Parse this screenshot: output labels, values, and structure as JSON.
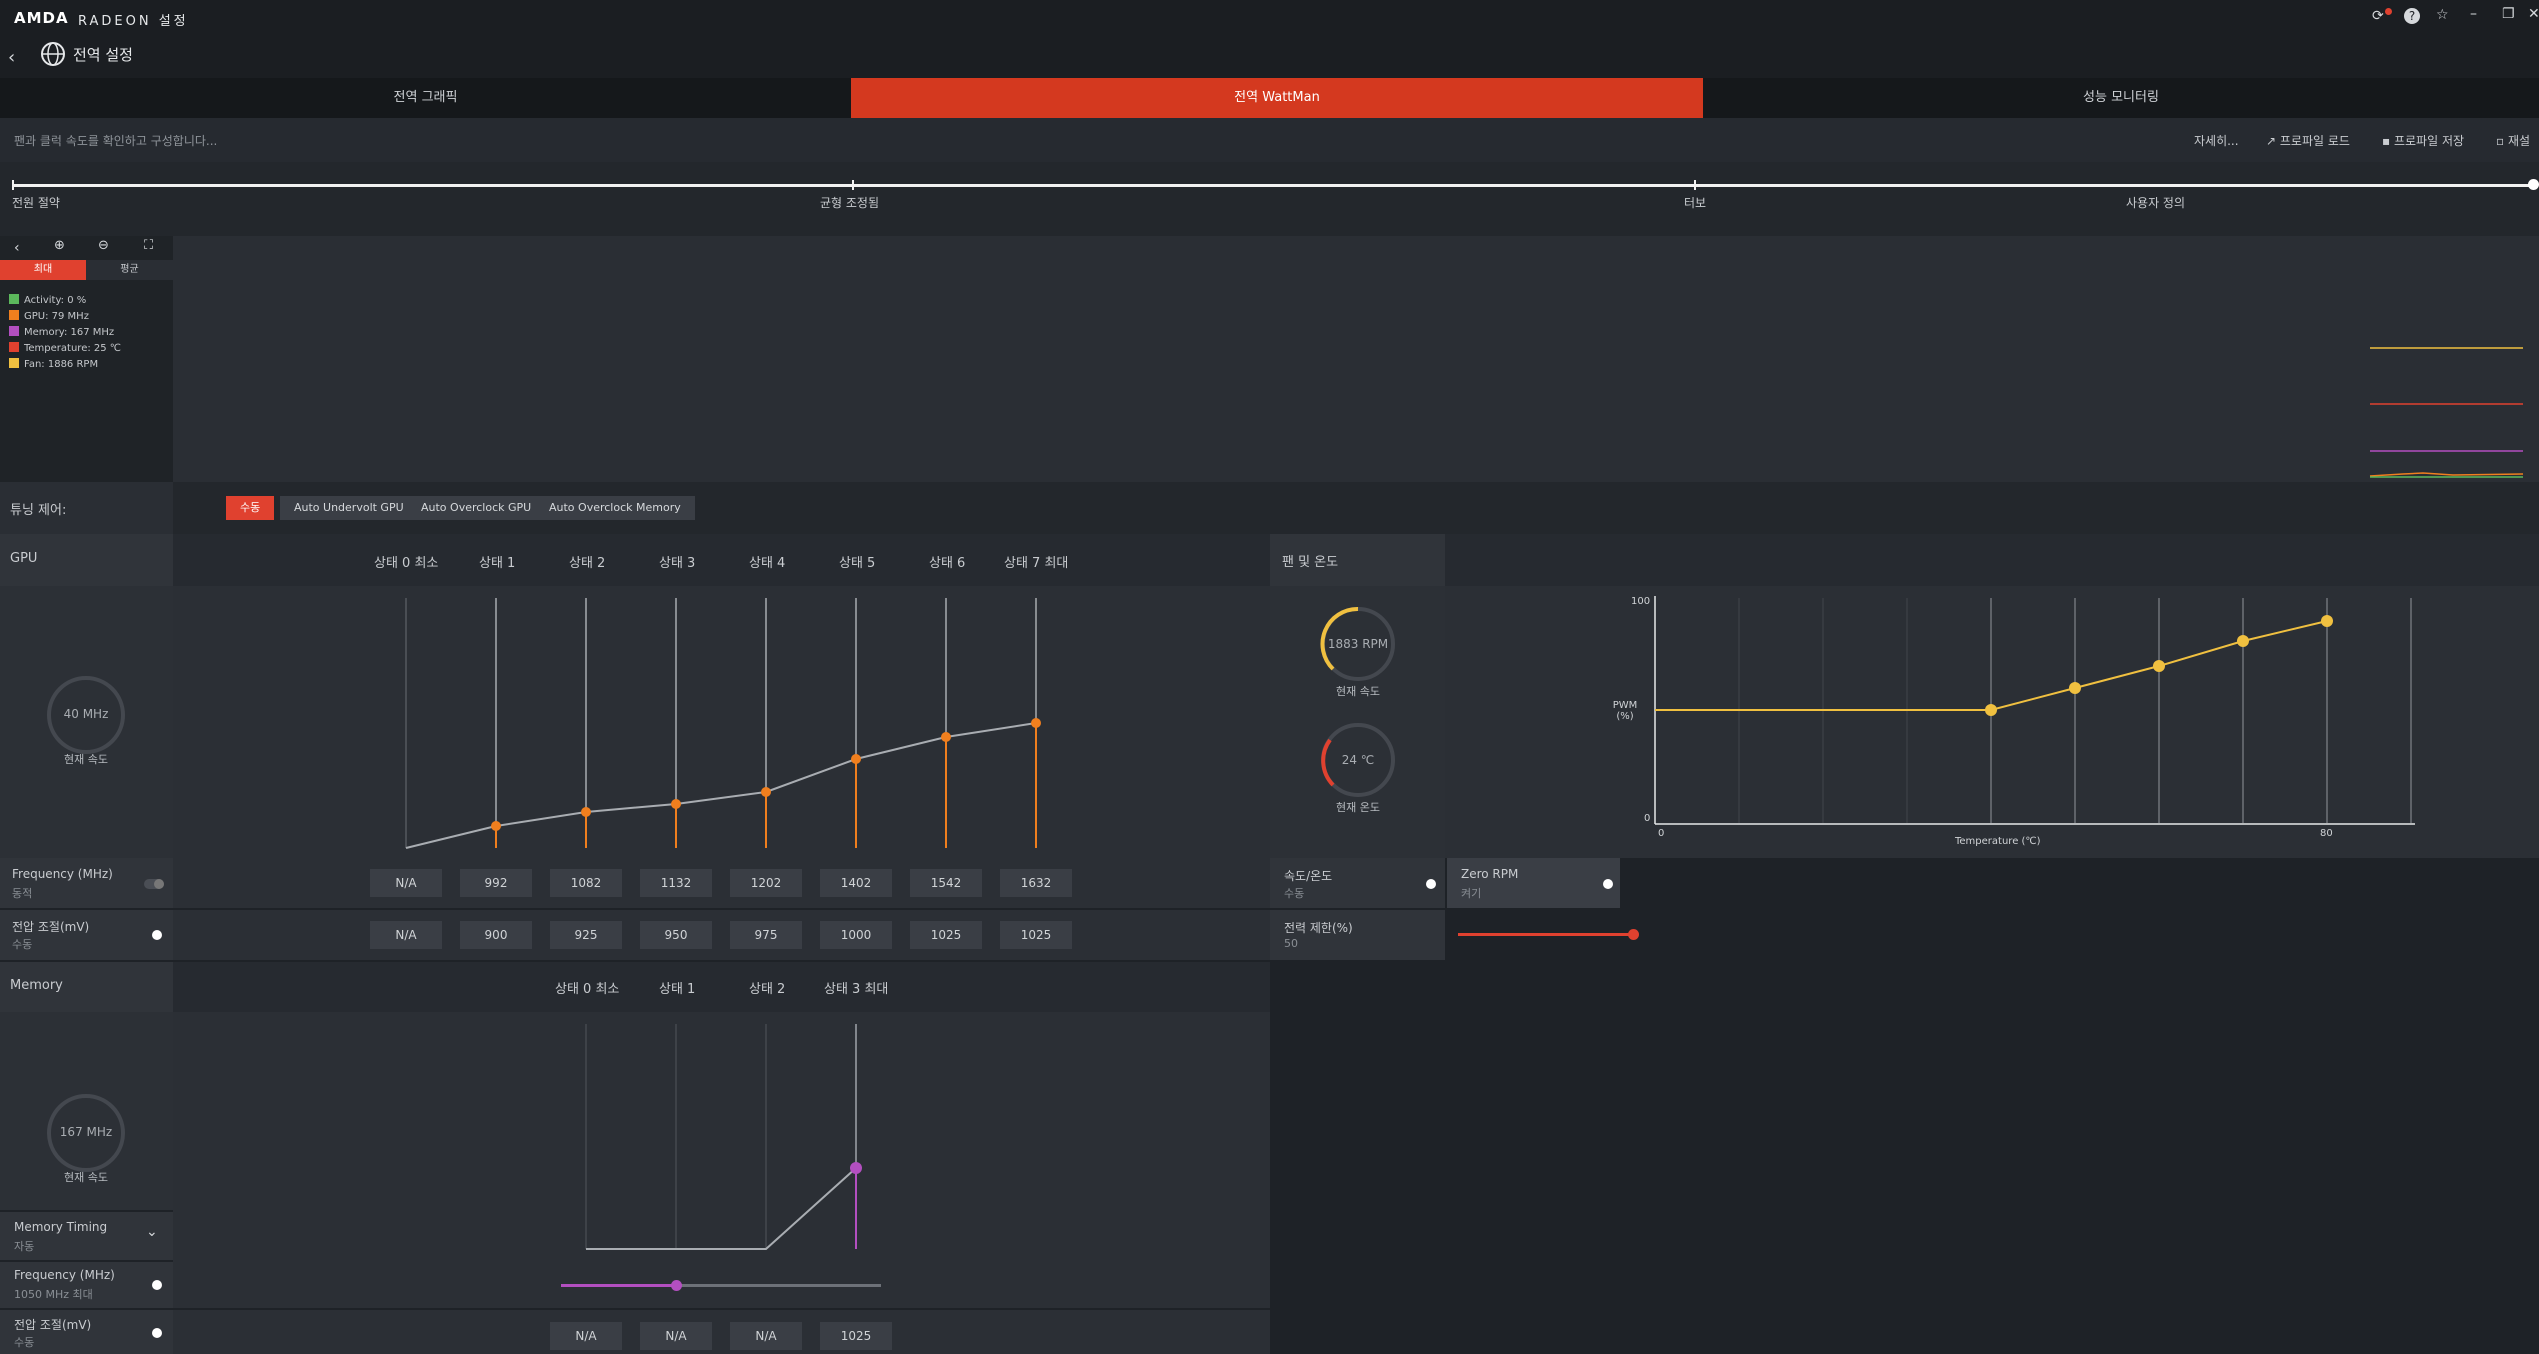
{
  "app": {
    "logo": "AMDA",
    "title": "RADEON 설정"
  },
  "nav": {
    "title": "전역 설정"
  },
  "tabs": [
    {
      "label": "전역 그래픽"
    },
    {
      "label": "전역 WattMan"
    },
    {
      "label": "성능 모니터링"
    }
  ],
  "subtool": {
    "description": "팬과 클럭 속도를 확인하고 구성합니다...",
    "details": "자세히...",
    "load_profile": "프로파일 로드",
    "save_profile": "프로파일 저장",
    "reset": "재설"
  },
  "presets": [
    "전원 절약",
    "균형 조정됨",
    "터보",
    "사용자 정의"
  ],
  "graph": {
    "tabs": [
      "최대",
      "평균"
    ],
    "legend": [
      {
        "label": "Activity: 0 %",
        "color": "#5cb85c"
      },
      {
        "label": "GPU: 79 MHz",
        "color": "#f07f1e"
      },
      {
        "label": "Memory: 167 MHz",
        "color": "#b34fc0"
      },
      {
        "label": "Temperature: 25 ℃",
        "color": "#e0412f"
      },
      {
        "label": "Fan: 1886 RPM",
        "color": "#f0c040"
      }
    ]
  },
  "tuning": {
    "label": "튜닝 제어:",
    "buttons": [
      "수동",
      "Auto Undervolt GPU",
      "Auto Overclock GPU",
      "Auto Overclock Memory"
    ]
  },
  "gpu": {
    "title": "GPU",
    "states": [
      "상태 0 최소",
      "상태 1",
      "상태 2",
      "상태 3",
      "상태 4",
      "상태 5",
      "상태 6",
      "상태 7 최대"
    ],
    "speed": "40 MHz",
    "speed_label": "현재 속도",
    "freq_label": "Frequency (MHz)",
    "freq_sub": "동적",
    "volt_label": "전압 조절(mV)",
    "volt_sub": "수동",
    "freq_values": [
      "N/A",
      "992",
      "1082",
      "1132",
      "1202",
      "1402",
      "1542",
      "1632"
    ],
    "volt_values": [
      "N/A",
      "900",
      "925",
      "950",
      "975",
      "1000",
      "1025",
      "1025"
    ]
  },
  "fan": {
    "title": "팬 및 온도",
    "rpm": "1883 RPM",
    "rpm_label": "현재 속도",
    "temp": "24 ℃",
    "temp_label": "현재 온도",
    "speed_temp_label": "속도/온도",
    "speed_temp_sub": "수동",
    "zero_rpm_label": "Zero RPM",
    "zero_rpm_sub": "켜기",
    "power_label": "전력 제한(%)",
    "power_value": "50",
    "chart_ylabel": "PWM\n(%)",
    "chart_xlabel": "Temperature (℃)",
    "y_ticks": [
      "100",
      "0"
    ],
    "x_ticks": [
      "0",
      "80"
    ]
  },
  "memory": {
    "title": "Memory",
    "states": [
      "상태 0 최소",
      "상태 1",
      "상태 2",
      "상태 3 최대"
    ],
    "speed": "167 MHz",
    "speed_label": "현재 속도",
    "timing_label": "Memory Timing",
    "timing_sub": "자동",
    "freq_label": "Frequency (MHz)",
    "freq_sub": "1050 MHz 최대",
    "volt_label": "전압 조절(mV)",
    "volt_sub": "수동",
    "volt_values": [
      "N/A",
      "N/A",
      "N/A",
      "1025"
    ]
  }
}
